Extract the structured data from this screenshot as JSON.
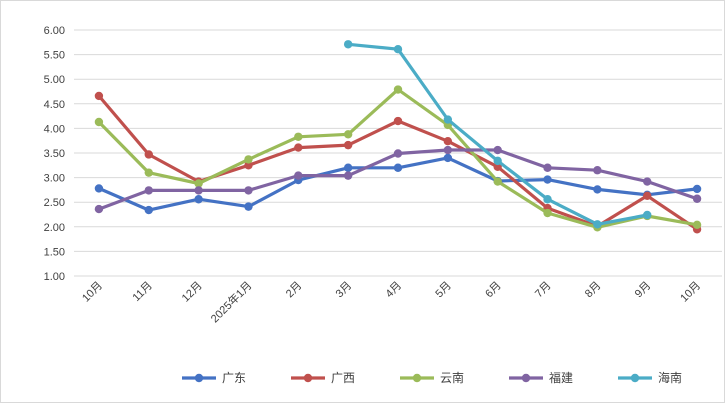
{
  "chart_data": {
    "type": "line",
    "title": "",
    "xlabel": "",
    "ylabel": "",
    "categories": [
      "10月",
      "11月",
      "12月",
      "2025年1月",
      "2月",
      "3月",
      "4月",
      "5月",
      "6月",
      "7月",
      "8月",
      "9月",
      "10月"
    ],
    "ylim": [
      1.0,
      6.0
    ],
    "ytick_labels": [
      "1.00",
      "1.50",
      "2.00",
      "2.50",
      "3.00",
      "3.50",
      "4.00",
      "4.50",
      "5.00",
      "5.50",
      "6.00"
    ],
    "grid": true,
    "legend_position": "bottom",
    "series": [
      {
        "name": "广东",
        "color": "#4472c4",
        "values": [
          2.78,
          2.34,
          2.56,
          2.41,
          2.95,
          3.2,
          3.2,
          3.4,
          2.93,
          2.96,
          2.76,
          2.65,
          2.77
        ]
      },
      {
        "name": "广西",
        "color": "#c0504d",
        "values": [
          4.66,
          3.47,
          2.92,
          3.25,
          3.61,
          3.66,
          4.15,
          3.74,
          3.22,
          2.38,
          2.01,
          2.63,
          1.95
        ]
      },
      {
        "name": "云南",
        "color": "#9bbb59",
        "values": [
          4.13,
          3.1,
          2.88,
          3.37,
          3.83,
          3.88,
          4.79,
          4.07,
          2.92,
          2.28,
          1.99,
          2.22,
          2.04
        ]
      },
      {
        "name": "福建",
        "color": "#8064a2",
        "values": [
          2.36,
          2.74,
          2.74,
          2.74,
          3.04,
          3.04,
          3.49,
          3.56,
          3.56,
          3.2,
          3.15,
          2.92,
          2.57
        ]
      },
      {
        "name": "海南",
        "color": "#4bacc6",
        "values": [
          null,
          null,
          null,
          null,
          null,
          5.71,
          5.61,
          4.18,
          3.34,
          2.56,
          2.05,
          2.24,
          null
        ]
      }
    ]
  }
}
